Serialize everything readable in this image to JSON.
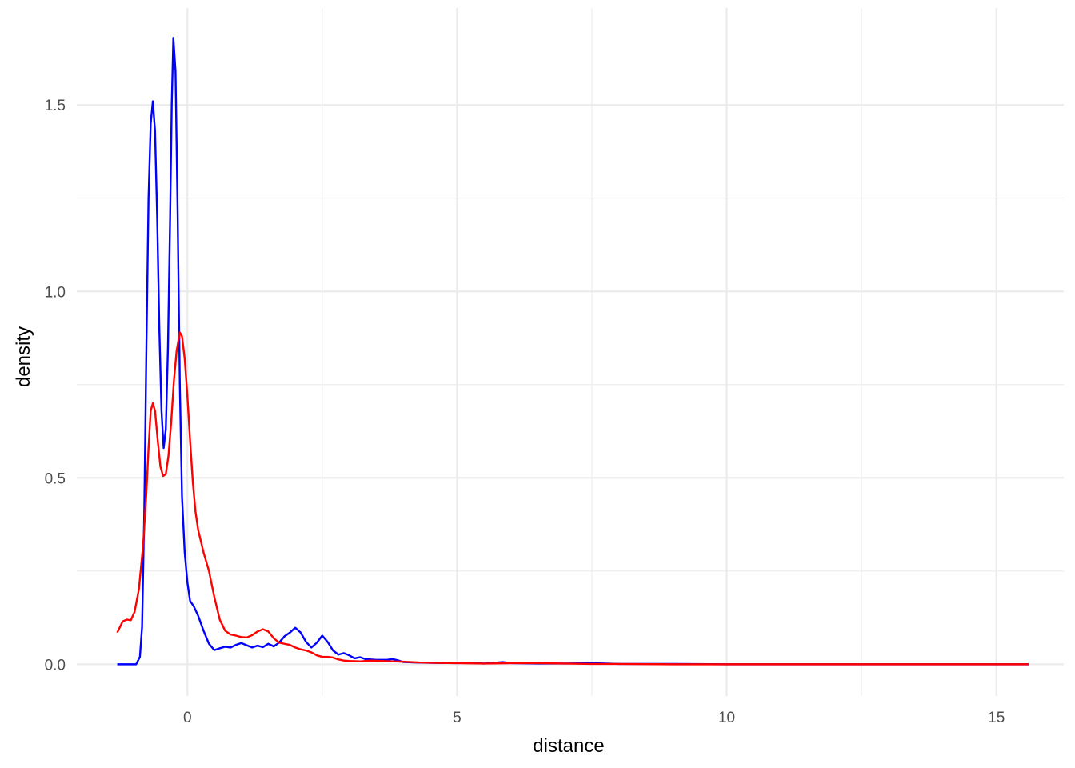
{
  "chart_data": {
    "type": "line",
    "title": "",
    "xlabel": "distance",
    "ylabel": "density",
    "xlim": [
      -2.05,
      16.25
    ],
    "ylim": [
      -0.085,
      1.76
    ],
    "x_major_ticks": [
      0,
      5,
      10,
      15
    ],
    "x_minor_ticks": [
      -2.5,
      2.5,
      7.5,
      12.5
    ],
    "y_major_ticks": [
      0.0,
      0.5,
      1.0,
      1.5
    ],
    "y_minor_ticks": [
      0.25,
      0.75,
      1.25
    ],
    "x_tick_labels": [
      "0",
      "5",
      "10",
      "15"
    ],
    "y_tick_labels": [
      "0.0",
      "0.5",
      "1.0",
      "1.5"
    ],
    "grid": true,
    "legend": "none",
    "series": [
      {
        "color": "#0000ff",
        "points": [
          [
            -1.3,
            0.0
          ],
          [
            -0.95,
            0.0
          ],
          [
            -0.88,
            0.02
          ],
          [
            -0.84,
            0.1
          ],
          [
            -0.8,
            0.4
          ],
          [
            -0.76,
            0.85
          ],
          [
            -0.72,
            1.25
          ],
          [
            -0.68,
            1.45
          ],
          [
            -0.64,
            1.51
          ],
          [
            -0.6,
            1.43
          ],
          [
            -0.56,
            1.2
          ],
          [
            -0.52,
            0.9
          ],
          [
            -0.48,
            0.68
          ],
          [
            -0.44,
            0.58
          ],
          [
            -0.4,
            0.63
          ],
          [
            -0.36,
            0.85
          ],
          [
            -0.32,
            1.2
          ],
          [
            -0.29,
            1.5
          ],
          [
            -0.26,
            1.68
          ],
          [
            -0.22,
            1.59
          ],
          [
            -0.18,
            1.2
          ],
          [
            -0.14,
            0.75
          ],
          [
            -0.1,
            0.45
          ],
          [
            -0.05,
            0.3
          ],
          [
            0.0,
            0.22
          ],
          [
            0.05,
            0.17
          ],
          [
            0.12,
            0.155
          ],
          [
            0.2,
            0.13
          ],
          [
            0.3,
            0.09
          ],
          [
            0.4,
            0.055
          ],
          [
            0.5,
            0.038
          ],
          [
            0.6,
            0.043
          ],
          [
            0.7,
            0.047
          ],
          [
            0.8,
            0.045
          ],
          [
            0.9,
            0.052
          ],
          [
            1.0,
            0.057
          ],
          [
            1.1,
            0.051
          ],
          [
            1.2,
            0.045
          ],
          [
            1.3,
            0.05
          ],
          [
            1.4,
            0.046
          ],
          [
            1.5,
            0.055
          ],
          [
            1.6,
            0.048
          ],
          [
            1.7,
            0.058
          ],
          [
            1.8,
            0.075
          ],
          [
            1.9,
            0.085
          ],
          [
            2.0,
            0.098
          ],
          [
            2.1,
            0.085
          ],
          [
            2.2,
            0.06
          ],
          [
            2.3,
            0.045
          ],
          [
            2.4,
            0.058
          ],
          [
            2.5,
            0.077
          ],
          [
            2.6,
            0.06
          ],
          [
            2.7,
            0.037
          ],
          [
            2.8,
            0.026
          ],
          [
            2.9,
            0.03
          ],
          [
            3.0,
            0.024
          ],
          [
            3.1,
            0.016
          ],
          [
            3.2,
            0.019
          ],
          [
            3.3,
            0.014
          ],
          [
            3.5,
            0.012
          ],
          [
            3.7,
            0.012
          ],
          [
            3.8,
            0.014
          ],
          [
            3.9,
            0.011
          ],
          [
            4.0,
            0.006
          ],
          [
            4.2,
            0.005
          ],
          [
            4.5,
            0.004
          ],
          [
            5.0,
            0.003
          ],
          [
            5.2,
            0.004
          ],
          [
            5.5,
            0.002
          ],
          [
            5.85,
            0.006
          ],
          [
            6.0,
            0.003
          ],
          [
            6.5,
            0.002
          ],
          [
            7.0,
            0.002
          ],
          [
            7.5,
            0.003
          ],
          [
            8.0,
            0.001
          ],
          [
            9.0,
            0.001
          ],
          [
            10.0,
            0.0
          ],
          [
            12.0,
            0.0
          ],
          [
            14.0,
            0.0
          ],
          [
            15.6,
            0.0
          ]
        ]
      },
      {
        "color": "#ff0000",
        "points": [
          [
            -1.3,
            0.085
          ],
          [
            -1.25,
            0.1
          ],
          [
            -1.2,
            0.115
          ],
          [
            -1.12,
            0.12
          ],
          [
            -1.05,
            0.118
          ],
          [
            -0.98,
            0.14
          ],
          [
            -0.9,
            0.2
          ],
          [
            -0.82,
            0.32
          ],
          [
            -0.76,
            0.46
          ],
          [
            -0.72,
            0.58
          ],
          [
            -0.68,
            0.68
          ],
          [
            -0.64,
            0.7
          ],
          [
            -0.6,
            0.68
          ],
          [
            -0.55,
            0.6
          ],
          [
            -0.5,
            0.53
          ],
          [
            -0.45,
            0.505
          ],
          [
            -0.4,
            0.51
          ],
          [
            -0.35,
            0.56
          ],
          [
            -0.3,
            0.65
          ],
          [
            -0.25,
            0.76
          ],
          [
            -0.2,
            0.84
          ],
          [
            -0.14,
            0.89
          ],
          [
            -0.1,
            0.88
          ],
          [
            -0.05,
            0.82
          ],
          [
            0.0,
            0.72
          ],
          [
            0.05,
            0.6
          ],
          [
            0.1,
            0.49
          ],
          [
            0.15,
            0.41
          ],
          [
            0.2,
            0.36
          ],
          [
            0.3,
            0.3
          ],
          [
            0.4,
            0.25
          ],
          [
            0.5,
            0.18
          ],
          [
            0.6,
            0.12
          ],
          [
            0.7,
            0.09
          ],
          [
            0.8,
            0.08
          ],
          [
            0.9,
            0.077
          ],
          [
            1.0,
            0.073
          ],
          [
            1.1,
            0.072
          ],
          [
            1.2,
            0.078
          ],
          [
            1.3,
            0.088
          ],
          [
            1.4,
            0.094
          ],
          [
            1.5,
            0.088
          ],
          [
            1.6,
            0.07
          ],
          [
            1.7,
            0.058
          ],
          [
            1.8,
            0.055
          ],
          [
            1.9,
            0.052
          ],
          [
            2.0,
            0.045
          ],
          [
            2.1,
            0.04
          ],
          [
            2.2,
            0.037
          ],
          [
            2.3,
            0.032
          ],
          [
            2.4,
            0.024
          ],
          [
            2.5,
            0.02
          ],
          [
            2.6,
            0.02
          ],
          [
            2.7,
            0.018
          ],
          [
            2.8,
            0.013
          ],
          [
            2.9,
            0.01
          ],
          [
            3.0,
            0.009
          ],
          [
            3.2,
            0.008
          ],
          [
            3.4,
            0.01
          ],
          [
            3.6,
            0.009
          ],
          [
            3.8,
            0.008
          ],
          [
            4.0,
            0.007
          ],
          [
            4.3,
            0.005
          ],
          [
            4.6,
            0.004
          ],
          [
            5.0,
            0.003
          ],
          [
            5.5,
            0.002
          ],
          [
            6.0,
            0.003
          ],
          [
            6.5,
            0.003
          ],
          [
            7.0,
            0.002
          ],
          [
            7.5,
            0.001
          ],
          [
            8.0,
            0.001
          ],
          [
            9.0,
            0.0
          ],
          [
            10.0,
            0.0
          ],
          [
            12.0,
            0.0
          ],
          [
            14.0,
            0.0
          ],
          [
            15.6,
            0.0
          ]
        ]
      }
    ]
  }
}
